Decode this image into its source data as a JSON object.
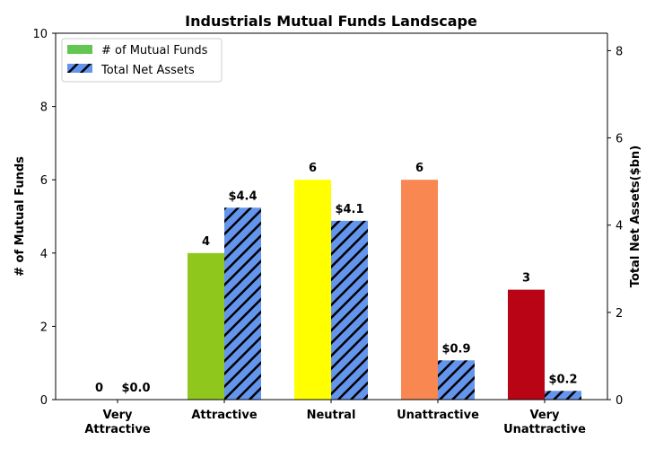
{
  "chart_data": {
    "type": "bar",
    "title": "Industrials Mutual Funds Landscape",
    "categories": [
      [
        "Very",
        "Attractive"
      ],
      [
        "Attractive"
      ],
      [
        "Neutral"
      ],
      [
        "Unattractive"
      ],
      [
        "Very",
        "Unattractive"
      ]
    ],
    "ylabel_left": "# of Mutual Funds",
    "ylabel_right": "Total Net Assets($bn)",
    "ylim_left": [
      0,
      10
    ],
    "ylim_right": [
      0,
      8.4
    ],
    "yticks_left": [
      0,
      2,
      4,
      6,
      8,
      10
    ],
    "yticks_right": [
      0,
      2,
      4,
      6,
      8
    ],
    "grid": false,
    "legend_position": "top-left",
    "series": [
      {
        "name": "# of Mutual Funds",
        "axis": "left",
        "values": [
          0,
          4,
          6,
          6,
          3
        ],
        "labels": [
          "0",
          "4",
          "6",
          "6",
          "3"
        ],
        "colors": [
          "#4db34d",
          "#8fc71c",
          "#ffff00",
          "#f88752",
          "#b80414"
        ],
        "legend_color": "#62c650"
      },
      {
        "name": "Total Net Assets",
        "axis": "right",
        "values": [
          0.0,
          4.4,
          4.1,
          0.9,
          0.2
        ],
        "labels": [
          "$0.0",
          "$4.4",
          "$4.1",
          "$0.9",
          "$0.2"
        ],
        "color": "#6495ed",
        "hatch": "diagonal"
      }
    ]
  }
}
